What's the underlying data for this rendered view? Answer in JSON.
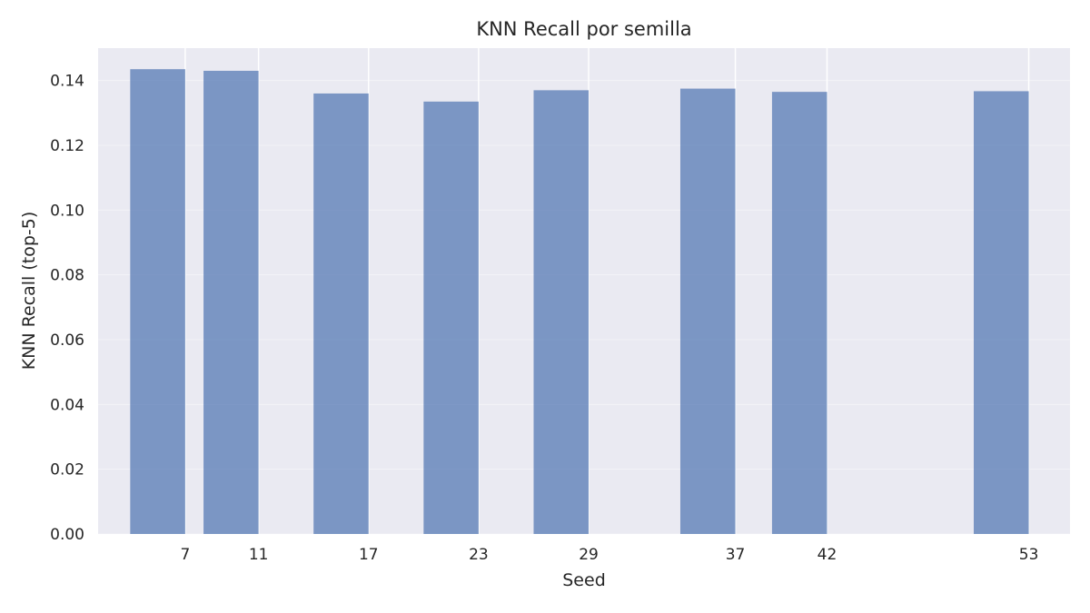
{
  "chart_data": {
    "type": "bar",
    "title": "KNN Recall por semilla",
    "xlabel": "Seed",
    "ylabel": "KNN Recall (top-5)",
    "categories": [
      "7",
      "11",
      "17",
      "23",
      "29",
      "37",
      "42",
      "53"
    ],
    "x": [
      7,
      11,
      17,
      23,
      29,
      37,
      42,
      53
    ],
    "values": [
      0.1435,
      0.143,
      0.136,
      0.1335,
      0.137,
      0.1375,
      0.1365,
      0.1367
    ],
    "xlim": [
      2.25,
      55.25
    ],
    "ylim": [
      0,
      0.15
    ],
    "yticks": [
      "0.00",
      "0.02",
      "0.04",
      "0.06",
      "0.08",
      "0.10",
      "0.12",
      "0.14"
    ],
    "bar_align": "right-edge-at-x",
    "bar_width_units": 3,
    "grid": true,
    "colors": {
      "bar": "#4c72b0",
      "plot_background": "#eaeaf2",
      "grid": "#ffffff",
      "text": "#262626"
    }
  }
}
